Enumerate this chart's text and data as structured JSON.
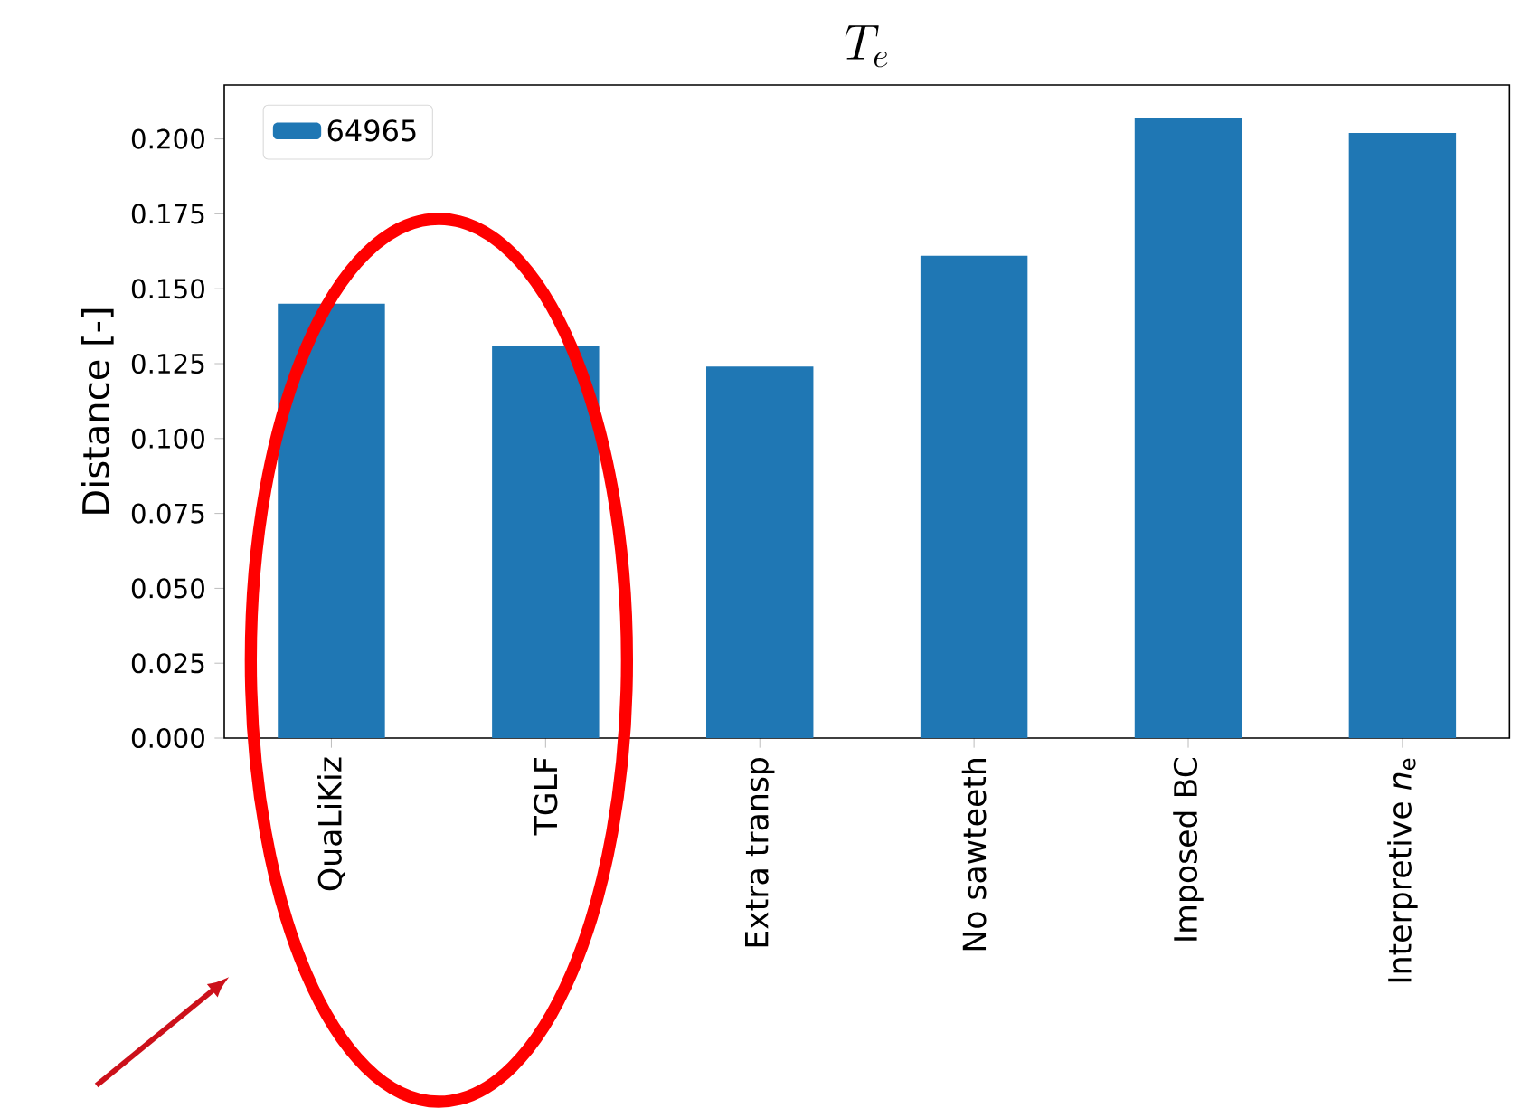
{
  "chart_data": {
    "type": "bar",
    "title": "T_e",
    "ylabel": "Distance [-]",
    "categories": [
      "QuaLiKiz",
      "TGLF",
      "Extra transp",
      "No sawteeth",
      "Imposed BC",
      "Interpretive *n*$_{e}$"
    ],
    "series": [
      {
        "name": "64965",
        "color": "#1f77b4",
        "values": [
          0.145,
          0.131,
          0.124,
          0.161,
          0.207,
          0.202
        ]
      }
    ],
    "ylim": [
      0,
      0.218
    ],
    "yticks": [
      {
        "value": 0,
        "label": "0.000"
      },
      {
        "value": 0.025,
        "label": "0.025"
      },
      {
        "value": 0.05,
        "label": "0.050"
      },
      {
        "value": 0.075,
        "label": "0.075"
      },
      {
        "value": 0.1,
        "label": "0.100"
      },
      {
        "value": 0.125,
        "label": "0.125"
      },
      {
        "value": 0.15,
        "label": "0.150"
      },
      {
        "value": 0.175,
        "label": "0.175"
      },
      {
        "value": 0.2,
        "label": "0.200"
      }
    ],
    "legend": "top left"
  }
}
